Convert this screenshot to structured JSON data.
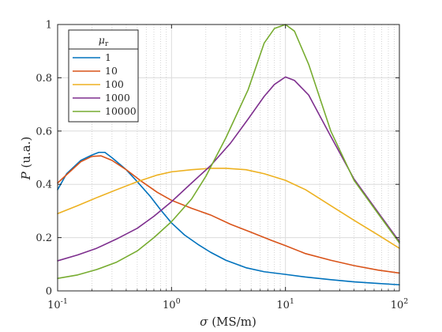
{
  "chart_data": {
    "type": "line",
    "xscale": "log",
    "xlim": [
      0.1,
      100
    ],
    "ylim": [
      0,
      1
    ],
    "grid": true,
    "minor_grid": true,
    "xlabel": {
      "symbol": "σ",
      "unit": " (MS/m)"
    },
    "ylabel": {
      "symbol": "P",
      "unit": " (u.a.)"
    },
    "x_ticks": [
      {
        "value": 0.1,
        "base": "10",
        "exp": "-1"
      },
      {
        "value": 1,
        "base": "10",
        "exp": "0"
      },
      {
        "value": 10,
        "base": "10",
        "exp": "1"
      },
      {
        "value": 100,
        "base": "10",
        "exp": "2"
      }
    ],
    "y_ticks": [
      {
        "value": 0,
        "label": "0"
      },
      {
        "value": 0.2,
        "label": "0.2"
      },
      {
        "value": 0.4,
        "label": "0.4"
      },
      {
        "value": 0.6,
        "label": "0.6"
      },
      {
        "value": 0.8,
        "label": "0.8"
      },
      {
        "value": 1,
        "label": "1"
      }
    ],
    "legend": {
      "position": "top-left",
      "title": {
        "symbol": "μ",
        "subscript": "r"
      }
    },
    "series": [
      {
        "name": "1",
        "color": "#0072BD",
        "points": [
          [
            0.1,
            0.38
          ],
          [
            0.12,
            0.44
          ],
          [
            0.16,
            0.49
          ],
          [
            0.2,
            0.51
          ],
          [
            0.23,
            0.52
          ],
          [
            0.26,
            0.52
          ],
          [
            0.3,
            0.5
          ],
          [
            0.4,
            0.455
          ],
          [
            0.5,
            0.41
          ],
          [
            0.65,
            0.355
          ],
          [
            0.8,
            0.305
          ],
          [
            1,
            0.255
          ],
          [
            1.3,
            0.21
          ],
          [
            1.7,
            0.175
          ],
          [
            2.2,
            0.145
          ],
          [
            3,
            0.115
          ],
          [
            4.5,
            0.087
          ],
          [
            6.5,
            0.072
          ],
          [
            10,
            0.062
          ],
          [
            15,
            0.052
          ],
          [
            25,
            0.042
          ],
          [
            40,
            0.034
          ],
          [
            65,
            0.028
          ],
          [
            100,
            0.023
          ]
        ]
      },
      {
        "name": "10",
        "color": "#D95319",
        "points": [
          [
            0.1,
            0.405
          ],
          [
            0.13,
            0.45
          ],
          [
            0.16,
            0.485
          ],
          [
            0.2,
            0.505
          ],
          [
            0.24,
            0.507
          ],
          [
            0.3,
            0.49
          ],
          [
            0.4,
            0.455
          ],
          [
            0.55,
            0.41
          ],
          [
            0.75,
            0.37
          ],
          [
            1,
            0.34
          ],
          [
            1.5,
            0.31
          ],
          [
            2.2,
            0.285
          ],
          [
            3.3,
            0.25
          ],
          [
            5,
            0.22
          ],
          [
            7.5,
            0.19
          ],
          [
            10,
            0.17
          ],
          [
            15,
            0.14
          ],
          [
            25,
            0.115
          ],
          [
            40,
            0.095
          ],
          [
            65,
            0.078
          ],
          [
            100,
            0.067
          ]
        ]
      },
      {
        "name": "100",
        "color": "#EDB120",
        "points": [
          [
            0.1,
            0.29
          ],
          [
            0.15,
            0.32
          ],
          [
            0.22,
            0.35
          ],
          [
            0.33,
            0.38
          ],
          [
            0.5,
            0.41
          ],
          [
            0.75,
            0.435
          ],
          [
            1,
            0.447
          ],
          [
            1.5,
            0.455
          ],
          [
            2.2,
            0.46
          ],
          [
            3,
            0.46
          ],
          [
            4.5,
            0.455
          ],
          [
            6.5,
            0.44
          ],
          [
            10,
            0.415
          ],
          [
            15,
            0.38
          ],
          [
            25,
            0.32
          ],
          [
            40,
            0.265
          ],
          [
            65,
            0.21
          ],
          [
            100,
            0.16
          ]
        ]
      },
      {
        "name": "1000",
        "color": "#7E2F8E",
        "points": [
          [
            0.1,
            0.113
          ],
          [
            0.15,
            0.135
          ],
          [
            0.22,
            0.16
          ],
          [
            0.33,
            0.195
          ],
          [
            0.5,
            0.235
          ],
          [
            0.7,
            0.28
          ],
          [
            1,
            0.335
          ],
          [
            1.5,
            0.405
          ],
          [
            2.2,
            0.47
          ],
          [
            3.3,
            0.555
          ],
          [
            4.7,
            0.645
          ],
          [
            6.5,
            0.73
          ],
          [
            8,
            0.775
          ],
          [
            10,
            0.803
          ],
          [
            12,
            0.79
          ],
          [
            16,
            0.735
          ],
          [
            25,
            0.58
          ],
          [
            40,
            0.42
          ],
          [
            65,
            0.295
          ],
          [
            100,
            0.185
          ]
        ]
      },
      {
        "name": "10000",
        "color": "#77AC30",
        "points": [
          [
            0.1,
            0.047
          ],
          [
            0.15,
            0.06
          ],
          [
            0.22,
            0.08
          ],
          [
            0.33,
            0.108
          ],
          [
            0.5,
            0.15
          ],
          [
            0.7,
            0.2
          ],
          [
            1,
            0.26
          ],
          [
            1.5,
            0.345
          ],
          [
            2,
            0.43
          ],
          [
            3,
            0.575
          ],
          [
            4.7,
            0.755
          ],
          [
            6.5,
            0.93
          ],
          [
            8,
            0.985
          ],
          [
            10,
            1.0
          ],
          [
            12,
            0.975
          ],
          [
            16,
            0.85
          ],
          [
            25,
            0.6
          ],
          [
            40,
            0.415
          ],
          [
            65,
            0.29
          ],
          [
            100,
            0.18
          ]
        ]
      }
    ]
  }
}
